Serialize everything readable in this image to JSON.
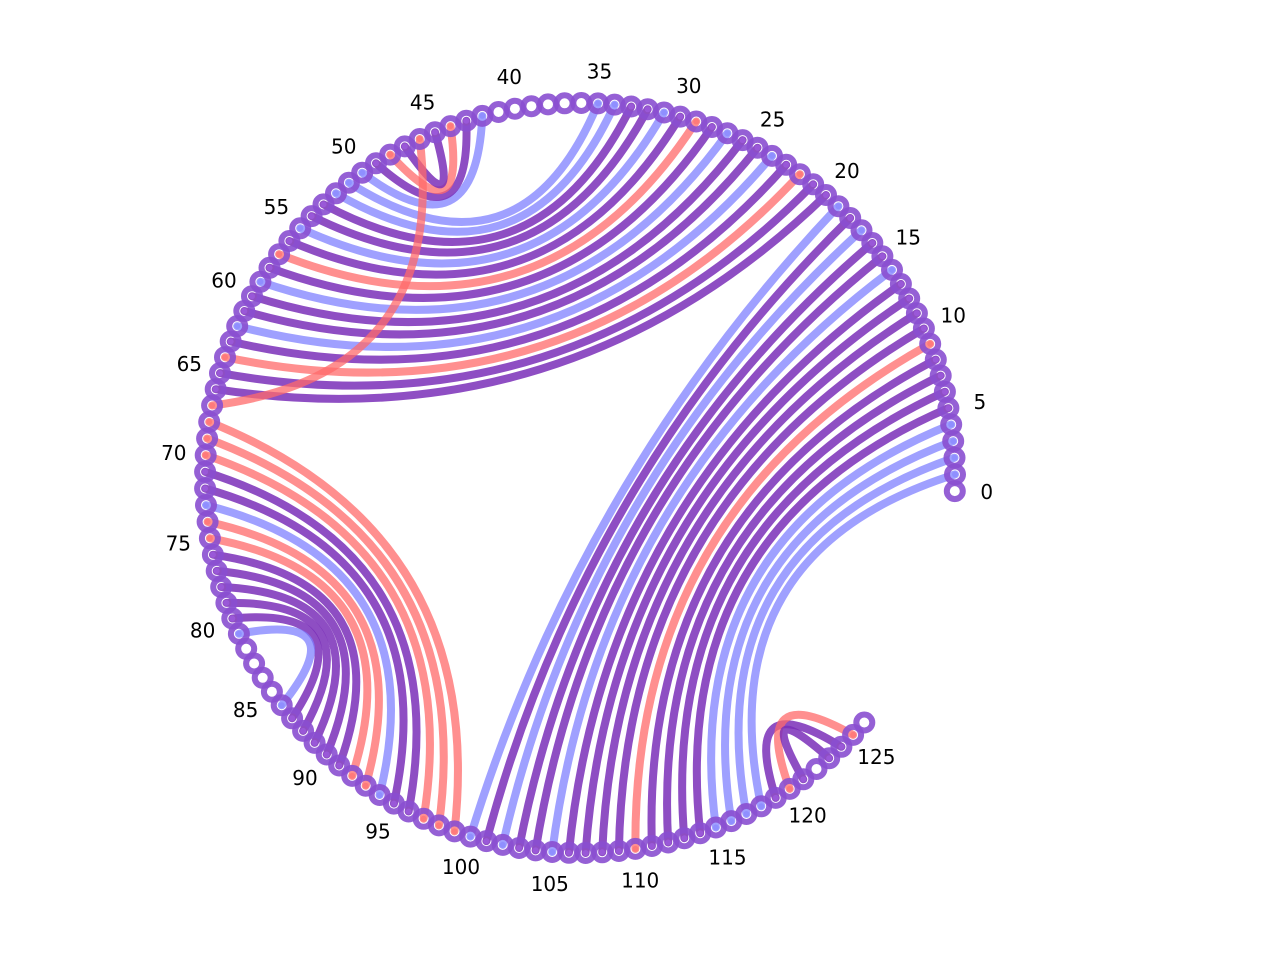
{
  "diagram": {
    "type": "chord",
    "node_count": 127,
    "node_labels": [
      "0",
      "5",
      "10",
      "15",
      "20",
      "25",
      "30",
      "35",
      "40",
      "45",
      "50",
      "55",
      "60",
      "65",
      "70",
      "75",
      "80",
      "85",
      "90",
      "95",
      "100",
      "105",
      "110",
      "115",
      "120",
      "125"
    ],
    "label_step": 5,
    "colors": {
      "red": "#ff6a6a",
      "blue": "#7f80ff",
      "purple": "#7a2fb8",
      "node_ring": "#8a4fd0"
    }
  },
  "chart_data": {
    "type": "chord",
    "nodes": 127,
    "chords": [
      {
        "from": 1,
        "to": 118,
        "color": "blue"
      },
      {
        "from": 2,
        "to": 117,
        "color": "blue"
      },
      {
        "from": 3,
        "to": 116,
        "color": "blue"
      },
      {
        "from": 4,
        "to": 115,
        "color": "blue"
      },
      {
        "from": 5,
        "to": 114,
        "color": "purple"
      },
      {
        "from": 6,
        "to": 113,
        "color": "purple"
      },
      {
        "from": 7,
        "to": 112,
        "color": "purple"
      },
      {
        "from": 8,
        "to": 111,
        "color": "purple"
      },
      {
        "from": 9,
        "to": 110,
        "color": "red"
      },
      {
        "from": 10,
        "to": 109,
        "color": "purple"
      },
      {
        "from": 11,
        "to": 108,
        "color": "purple"
      },
      {
        "from": 12,
        "to": 107,
        "color": "purple"
      },
      {
        "from": 13,
        "to": 106,
        "color": "purple"
      },
      {
        "from": 14,
        "to": 105,
        "color": "blue"
      },
      {
        "from": 15,
        "to": 104,
        "color": "purple"
      },
      {
        "from": 16,
        "to": 103,
        "color": "purple"
      },
      {
        "from": 17,
        "to": 102,
        "color": "blue"
      },
      {
        "from": 18,
        "to": 101,
        "color": "purple"
      },
      {
        "from": 19,
        "to": 100,
        "color": "blue"
      },
      {
        "from": 20,
        "to": 66,
        "color": "purple"
      },
      {
        "from": 21,
        "to": 65,
        "color": "purple"
      },
      {
        "from": 22,
        "to": 64,
        "color": "red"
      },
      {
        "from": 23,
        "to": 63,
        "color": "purple"
      },
      {
        "from": 24,
        "to": 62,
        "color": "blue"
      },
      {
        "from": 25,
        "to": 61,
        "color": "purple"
      },
      {
        "from": 26,
        "to": 60,
        "color": "purple"
      },
      {
        "from": 27,
        "to": 59,
        "color": "blue"
      },
      {
        "from": 28,
        "to": 58,
        "color": "purple"
      },
      {
        "from": 29,
        "to": 57,
        "color": "red"
      },
      {
        "from": 30,
        "to": 56,
        "color": "purple"
      },
      {
        "from": 31,
        "to": 55,
        "color": "blue"
      },
      {
        "from": 32,
        "to": 54,
        "color": "purple"
      },
      {
        "from": 33,
        "to": 53,
        "color": "purple"
      },
      {
        "from": 34,
        "to": 52,
        "color": "blue"
      },
      {
        "from": 35,
        "to": 51,
        "color": "blue"
      },
      {
        "from": 42,
        "to": 50,
        "color": "blue"
      },
      {
        "from": 43,
        "to": 49,
        "color": "purple"
      },
      {
        "from": 44,
        "to": 48,
        "color": "red"
      },
      {
        "from": 45,
        "to": 47,
        "color": "purple"
      },
      {
        "from": 46,
        "to": 67,
        "color": "red"
      },
      {
        "from": 68,
        "to": 99,
        "color": "red"
      },
      {
        "from": 69,
        "to": 98,
        "color": "red"
      },
      {
        "from": 70,
        "to": 97,
        "color": "red"
      },
      {
        "from": 71,
        "to": 96,
        "color": "purple"
      },
      {
        "from": 72,
        "to": 95,
        "color": "purple"
      },
      {
        "from": 73,
        "to": 94,
        "color": "blue"
      },
      {
        "from": 74,
        "to": 93,
        "color": "red"
      },
      {
        "from": 75,
        "to": 92,
        "color": "red"
      },
      {
        "from": 76,
        "to": 91,
        "color": "purple"
      },
      {
        "from": 77,
        "to": 90,
        "color": "purple"
      },
      {
        "from": 78,
        "to": 89,
        "color": "purple"
      },
      {
        "from": 79,
        "to": 88,
        "color": "purple"
      },
      {
        "from": 80,
        "to": 87,
        "color": "purple"
      },
      {
        "from": 81,
        "to": 86,
        "color": "blue"
      },
      {
        "from": 119,
        "to": 124,
        "color": "purple"
      },
      {
        "from": 120,
        "to": 125,
        "color": "red"
      },
      {
        "from": 121,
        "to": 123,
        "color": "purple"
      }
    ]
  }
}
